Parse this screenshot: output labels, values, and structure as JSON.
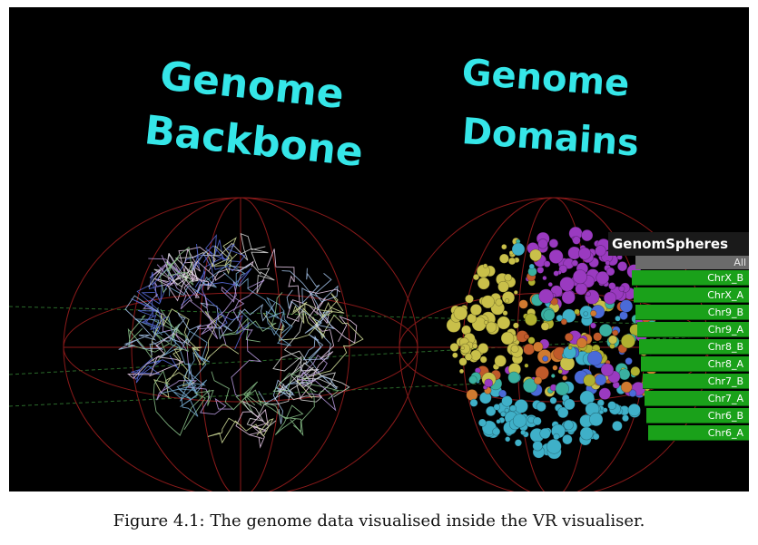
{
  "figure": {
    "left_title": "Genome Backbone",
    "left_title_lines": [
      "Genome",
      "Backbone"
    ],
    "right_title_lines": [
      "Genome",
      "Domains"
    ],
    "panel": {
      "title": "GenomSpheres",
      "all_label": "All",
      "items": [
        "ChrX_B",
        "ChrX_A",
        "Chr9_B",
        "Chr9_A",
        "Chr8_B",
        "Chr8_A",
        "Chr7_B",
        "Chr7_A",
        "Chr6_B",
        "Chr6_A"
      ]
    }
  },
  "caption": "Figure 4.1: The genome data visualised inside the VR visualiser.",
  "colors": {
    "background": "#000000",
    "title": "#35e6e8",
    "cage": "#8b1a1a",
    "panel_row": "#1aa11a"
  }
}
